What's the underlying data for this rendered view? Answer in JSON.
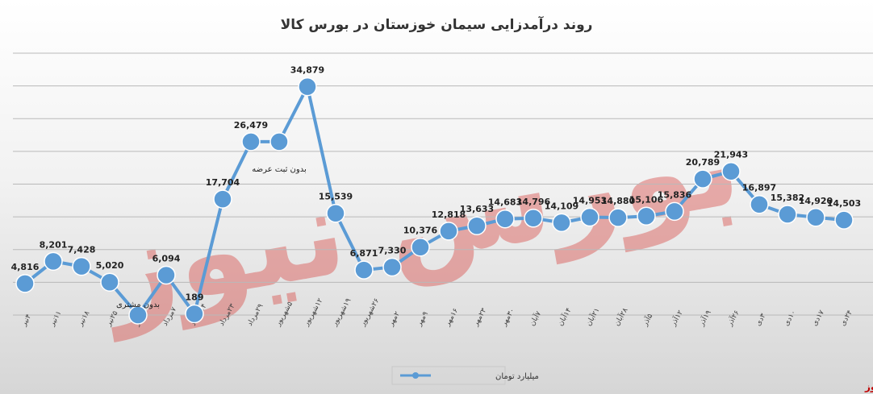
{
  "chart_data": {
    "type": "line",
    "title": "روند درآمدزایی سیمان خوزستان در بورس کالا",
    "categories": [
      "۴تیر",
      "۱۱تیر",
      "۱۸تیر",
      "۲۵تیر",
      "۳۱تیر",
      "۷مرداد",
      "۱۴مرداد",
      "۲۳مرداد",
      "۲۹مرداد",
      "۵شهریور",
      "۱۲شهریور",
      "۱۹شهریور",
      "۲۶شهریور",
      "۲مهر",
      "۹مهر",
      "۱۶مهر",
      "۲۳مهر",
      "۳۰مهر",
      "۷آبان",
      "۱۴آبان",
      "۲۱آبان",
      "۲۸آبان",
      "۵آذر",
      "۱۲آذر",
      "۱۹آذر",
      "۲۶آذر",
      "۳دی",
      "۱۰دی",
      "۱۷دی",
      "۲۴دی"
    ],
    "series": [
      {
        "name": "میلیارد تومان",
        "values": [
          4816,
          8201,
          7428,
          5020,
          0,
          6094,
          189,
          17704,
          26479,
          26479,
          34879,
          15539,
          6871,
          7330,
          10376,
          12818,
          13633,
          14683,
          14796,
          14109,
          14953,
          14880,
          15106,
          15836,
          20789,
          21943,
          16897,
          15382,
          14920,
          14503
        ],
        "labels": [
          "4,816",
          "8,201",
          "7,428",
          "5,020",
          "",
          "6,094",
          "189",
          "17,704",
          "26,479",
          "",
          "34,879",
          "15,539",
          "6,871",
          "7,330",
          "10,376",
          "12,818",
          "13,633",
          "14,683",
          "14,796",
          "14,109",
          "14,953",
          "14,880",
          "15,106",
          "15,836",
          "20,789",
          "21,943",
          "16,897",
          "15,382",
          "14,920",
          "14,503"
        ],
        "color": "#5b9bd5"
      }
    ],
    "annotations": [
      {
        "index": 4,
        "text": "بدون مشتری"
      },
      {
        "index": 9,
        "text": "بدون ثبت عرضه"
      }
    ],
    "ylim": [
      0,
      40000
    ],
    "grid": true,
    "legend": "bottom-center"
  },
  "watermark": "بورس نیوز",
  "brand": "بورس نیوز"
}
